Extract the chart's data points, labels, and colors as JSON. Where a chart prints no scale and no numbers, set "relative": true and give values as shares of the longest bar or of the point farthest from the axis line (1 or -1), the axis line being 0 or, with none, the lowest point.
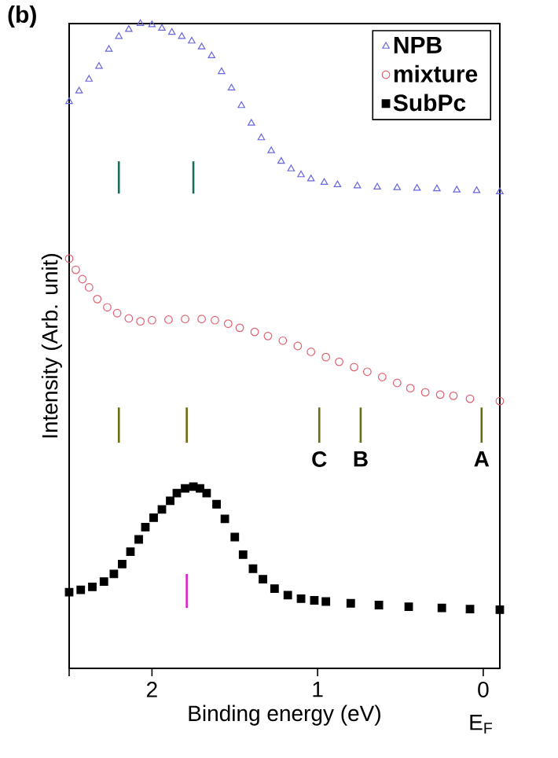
{
  "chart_data": {
    "type": "scatter",
    "relative": true,
    "xlabel": "Binding energy (eV)",
    "ylabel": "Intensity (Arb. unit)",
    "xlim": [
      2.5,
      -0.1
    ],
    "xticks": [
      {
        "value": 2.5,
        "label": null
      },
      2,
      1,
      0
    ],
    "legend": "top right",
    "annotations": [
      "(b)",
      {
        "text": "C",
        "x": 0.99,
        "y": 0.285
      },
      {
        "text": "B",
        "x": 0.74,
        "y": 0.285
      },
      {
        "text": "A",
        "x": 0.01,
        "y": 0.285
      },
      "E$_{F}$"
    ],
    "series": [
      {
        "name": "NPB",
        "color": "#6666dd",
        "marker": "triangle",
        "x": [
          2.5,
          2.44,
          2.38,
          2.32,
          2.26,
          2.2,
          2.14,
          2.07,
          2.0,
          1.94,
          1.88,
          1.82,
          1.76,
          1.7,
          1.64,
          1.58,
          1.52,
          1.46,
          1.4,
          1.34,
          1.28,
          1.22,
          1.16,
          1.1,
          1.04,
          0.96,
          0.88,
          0.76,
          0.64,
          0.52,
          0.4,
          0.28,
          0.16,
          0.04,
          -0.1
        ],
        "values": [
          0.867,
          0.885,
          0.905,
          0.927,
          0.956,
          0.978,
          0.99,
          1.0,
          0.998,
          0.992,
          0.985,
          0.978,
          0.97,
          0.96,
          0.945,
          0.918,
          0.89,
          0.86,
          0.83,
          0.805,
          0.783,
          0.765,
          0.752,
          0.742,
          0.735,
          0.729,
          0.725,
          0.723,
          0.721,
          0.72,
          0.719,
          0.718,
          0.716,
          0.715,
          0.713
        ]
      },
      {
        "name": "mixture",
        "color": "#e06070",
        "marker": "circle",
        "x": [
          2.5,
          2.46,
          2.42,
          2.38,
          2.33,
          2.27,
          2.21,
          2.14,
          2.07,
          2.0,
          1.9,
          1.8,
          1.7,
          1.62,
          1.54,
          1.47,
          1.38,
          1.3,
          1.21,
          1.12,
          1.04,
          0.95,
          0.87,
          0.78,
          0.7,
          0.61,
          0.52,
          0.44,
          0.35,
          0.26,
          0.18,
          0.08,
          -0.1
        ],
        "values": [
          0.599,
          0.58,
          0.564,
          0.55,
          0.53,
          0.516,
          0.506,
          0.497,
          0.492,
          0.494,
          0.495,
          0.496,
          0.496,
          0.494,
          0.488,
          0.481,
          0.474,
          0.467,
          0.459,
          0.45,
          0.44,
          0.431,
          0.423,
          0.414,
          0.406,
          0.397,
          0.387,
          0.378,
          0.371,
          0.367,
          0.365,
          0.36,
          0.356
        ]
      },
      {
        "name": "SubPc",
        "color": "#000000",
        "marker": "square",
        "x": [
          2.5,
          2.43,
          2.36,
          2.29,
          2.23,
          2.18,
          2.13,
          2.08,
          2.04,
          1.99,
          1.94,
          1.89,
          1.85,
          1.8,
          1.75,
          1.71,
          1.67,
          1.61,
          1.56,
          1.5,
          1.45,
          1.39,
          1.33,
          1.26,
          1.18,
          1.1,
          1.02,
          0.95,
          0.8,
          0.63,
          0.45,
          0.25,
          0.08,
          -0.1
        ],
        "values": [
          0.03,
          0.034,
          0.039,
          0.048,
          0.061,
          0.078,
          0.099,
          0.12,
          0.141,
          0.157,
          0.171,
          0.186,
          0.199,
          0.207,
          0.21,
          0.207,
          0.199,
          0.18,
          0.155,
          0.124,
          0.094,
          0.07,
          0.052,
          0.036,
          0.025,
          0.019,
          0.016,
          0.014,
          0.011,
          0.008,
          0.005,
          0.003,
          0.001,
          0.0
        ]
      },
      {
        "type": "line",
        "color": "#1a6b5e",
        "x": [
          2.2,
          2.2
        ],
        "values": [
          0.765,
          0.71
        ]
      },
      {
        "type": "line",
        "color": "#1a6b5e",
        "x": [
          1.75,
          1.75
        ],
        "values": [
          0.765,
          0.71
        ]
      },
      {
        "type": "line",
        "color": "#6b6b10",
        "x": [
          2.2,
          2.2
        ],
        "values": [
          0.345,
          0.285
        ]
      },
      {
        "type": "line",
        "color": "#6b6b10",
        "x": [
          1.79,
          1.79
        ],
        "values": [
          0.345,
          0.285
        ]
      },
      {
        "type": "line",
        "color": "#6b6b10",
        "x": [
          0.99,
          0.99
        ],
        "values": [
          0.345,
          0.285
        ]
      },
      {
        "type": "line",
        "color": "#6b6b10",
        "x": [
          0.74,
          0.74
        ],
        "values": [
          0.345,
          0.285
        ]
      },
      {
        "type": "line",
        "color": "#6b6b10",
        "x": [
          0.01,
          0.01
        ],
        "values": [
          0.345,
          0.285
        ]
      },
      {
        "type": "line",
        "color": "#e020d0",
        "x": [
          1.79,
          1.79
        ],
        "values": [
          0.061,
          0.003
        ]
      }
    ]
  }
}
